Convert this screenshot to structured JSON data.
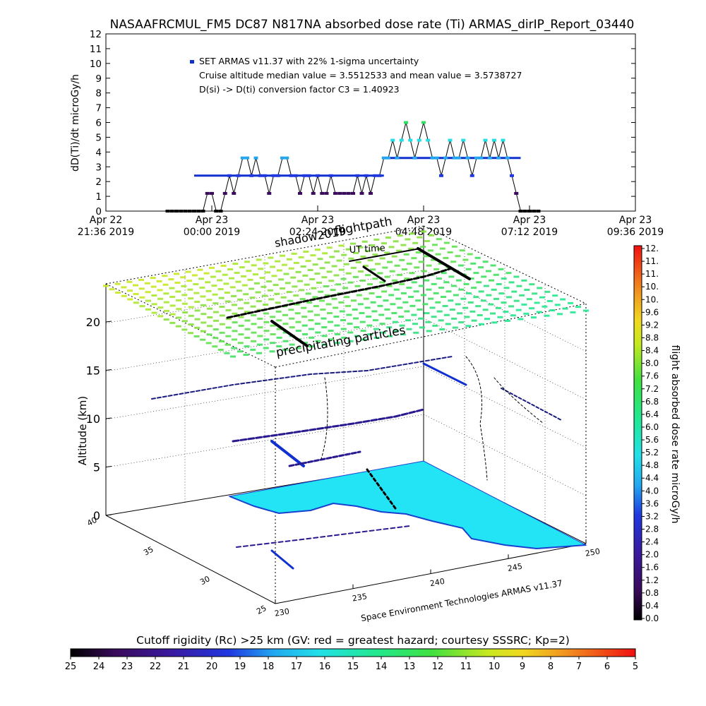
{
  "chart_data": [
    {
      "type": "line",
      "title": "NASAAFRCMUL_FM5 DC87 N817NA absorbed dose rate (Ti) ARMAS_dirIP_Report_03440",
      "ylabel": "dD(Ti)/dt microGy/h",
      "xlabel": "",
      "ylim": [
        0,
        12
      ],
      "yticks": [
        "0",
        "1",
        "2",
        "3",
        "4",
        "5",
        "6",
        "7",
        "8",
        "9",
        "10",
        "11",
        "12"
      ],
      "xticks": [
        {
          "line1": "Apr 22",
          "line2": "21:36 2019"
        },
        {
          "line1": "Apr 23",
          "line2": "00:00 2019"
        },
        {
          "line1": "Apr 23",
          "line2": "02:24 2019"
        },
        {
          "line1": "Apr 23",
          "line2": "04:48 2019"
        },
        {
          "line1": "Apr 23",
          "line2": "07:12 2019"
        },
        {
          "line1": "Apr 23",
          "line2": "09:36 2019"
        }
      ],
      "xrange_hours": [
        0,
        12
      ],
      "annotations": [
        "SET ARMAS v11.37 with 22% 1-sigma uncertainty",
        "Cruise altitude median value = 3.5512533 and mean value = 3.5738727",
        "D(si) -> D(ti) conversion factor C3 = 1.40923"
      ],
      "legend_color": "#1030d0",
      "series": [
        {
          "x_hours": [
            1.4,
            1.5,
            1.6,
            1.7,
            1.8,
            1.9,
            2.0,
            2.1,
            2.2,
            2.3,
            2.4,
            2.5,
            2.6,
            2.7,
            2.8,
            2.9,
            3.0,
            3.1,
            3.2,
            3.3,
            3.4,
            3.5,
            3.6,
            3.7,
            3.8,
            3.9,
            4.0,
            4.1,
            4.2,
            4.3,
            4.4,
            4.5,
            4.6,
            4.7,
            4.8,
            4.9,
            5.0,
            5.1,
            5.2,
            5.3,
            5.4,
            5.5,
            5.6,
            5.7,
            5.8,
            5.9,
            6.0,
            6.1,
            6.2,
            6.3,
            6.4,
            6.5,
            6.6,
            6.7,
            6.8,
            6.9,
            7.0,
            7.1,
            7.2,
            7.3,
            7.4,
            7.5,
            7.6,
            7.7,
            7.8,
            7.9,
            8.0,
            8.1,
            8.2,
            8.3,
            8.4,
            8.5,
            8.6,
            8.7,
            8.8,
            8.9,
            9.0,
            9.1,
            9.2,
            9.3,
            9.4,
            9.5,
            9.6,
            9.7,
            9.8
          ],
          "values": [
            0,
            0,
            0,
            0,
            0,
            0,
            0,
            0,
            0,
            1.2,
            1.2,
            0,
            0,
            1.2,
            2.4,
            1.2,
            2.4,
            3.6,
            3.6,
            2.4,
            3.6,
            2.4,
            2.4,
            1.2,
            2.4,
            2.4,
            3.6,
            3.6,
            2.4,
            2.4,
            1.2,
            2.4,
            2.4,
            1.2,
            2.4,
            1.2,
            1.2,
            2.4,
            1.2,
            1.2,
            1.2,
            1.2,
            1.2,
            2.4,
            1.2,
            2.4,
            1.2,
            2.4,
            2.4,
            3.6,
            3.6,
            4.8,
            3.6,
            4.8,
            6.0,
            4.8,
            3.6,
            4.8,
            6.0,
            4.8,
            3.6,
            3.6,
            2.4,
            3.6,
            4.8,
            3.6,
            3.6,
            4.8,
            3.6,
            2.4,
            3.6,
            3.6,
            4.8,
            3.6,
            4.8,
            3.6,
            4.8,
            3.6,
            2.4,
            1.2,
            0,
            0,
            0,
            0,
            0
          ]
        }
      ]
    },
    {
      "type": "scatter",
      "title": "",
      "subtitle": "Space Environment Technologies ARMAS v11.37",
      "zlabel": "Altitude (km)",
      "zticks": [
        "0",
        "5",
        "10",
        "15",
        "20"
      ],
      "lat_ticks": [
        "25",
        "30",
        "35",
        "40"
      ],
      "lon_ticks": [
        "230",
        "235",
        "240",
        "245",
        "250"
      ],
      "annotations": {
        "shadow": "shadow2019",
        "flightpath": "flightpath",
        "ut_time": "UT time",
        "precipitating": "precipitating particles"
      },
      "colorbar": {
        "label": "flight absorbed dose rate microGy/h",
        "ticks": [
          "0.0",
          "0.4",
          "0.8",
          "1.2",
          "1.6",
          "2.0",
          "2.4",
          "2.8",
          "3.2",
          "3.6",
          "4.0",
          "4.4",
          "4.8",
          "5.2",
          "5.6",
          "6.0",
          "6.4",
          "6.8",
          "7.2",
          "7.6",
          "8.0",
          "8.4",
          "8.8",
          "9.2",
          "9.6",
          "10.",
          "10.",
          "11.",
          "11.",
          "12."
        ]
      },
      "cutoff_bar": {
        "title": "Cutoff rigidity (Rc) >25 km (GV: red = greatest hazard; courtesy SSSRC; Kp=2)",
        "ticks": [
          "25",
          "24",
          "23",
          "22",
          "21",
          "20",
          "19",
          "18",
          "17",
          "16",
          "15",
          "14",
          "13",
          "12",
          "11",
          "10",
          "9",
          "8",
          "7",
          "6",
          "5"
        ]
      },
      "colors": {
        "map_fill": "#22e4f4",
        "map_edge": "#1a40d0",
        "track": "#000000"
      }
    }
  ]
}
